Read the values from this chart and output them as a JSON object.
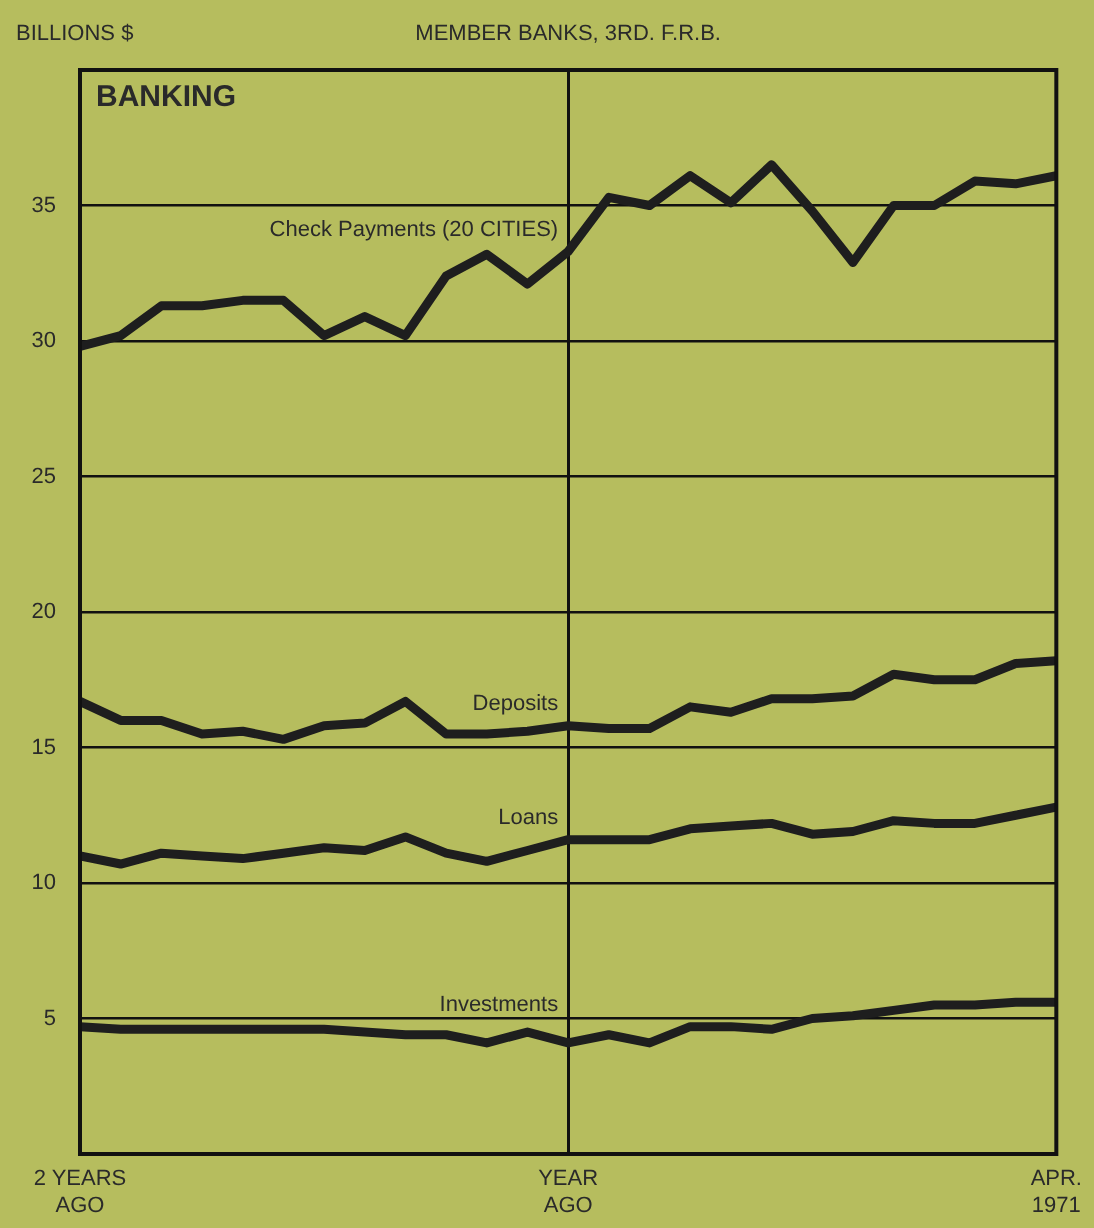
{
  "chart_data": {
    "type": "line",
    "title": "BANKING",
    "subtitle": "MEMBER BANKS, 3RD. F.R.B.",
    "ylabel": "BILLIONS $",
    "categories": [
      "2 YEARS AGO",
      null,
      null,
      null,
      null,
      null,
      null,
      null,
      null,
      null,
      null,
      null,
      "YEAR AGO",
      null,
      null,
      null,
      null,
      null,
      null,
      null,
      null,
      null,
      null,
      null,
      "APR. 1971"
    ],
    "ylim": [
      0,
      40
    ],
    "yticks": [
      {
        "value": 0,
        "label": null
      },
      5,
      10,
      15,
      20,
      25,
      30,
      35,
      {
        "value": 40,
        "label": null
      }
    ],
    "grid": true,
    "legend": false,
    "marker": "none",
    "line_style": "solid",
    "series": [
      {
        "name": "Check Payments (20 CITIES)",
        "color": "#1e1e1e",
        "values": [
          29.8,
          30.2,
          31.3,
          31.3,
          31.5,
          31.5,
          30.2,
          30.9,
          30.2,
          32.4,
          33.2,
          32.1,
          33.3,
          35.3,
          35.0,
          36.1,
          35.1,
          36.5,
          34.8,
          32.9,
          35.0,
          35.0,
          35.9,
          35.8,
          36.1
        ]
      },
      {
        "name": "Deposits",
        "color": "#1e1e1e",
        "values": [
          16.7,
          16.0,
          16.0,
          15.5,
          15.6,
          15.3,
          15.8,
          15.9,
          16.7,
          15.5,
          15.5,
          15.6,
          15.8,
          15.7,
          15.7,
          16.5,
          16.3,
          16.8,
          16.8,
          16.9,
          17.7,
          17.5,
          17.5,
          18.1,
          18.2
        ]
      },
      {
        "name": "Loans",
        "color": "#1e1e1e",
        "values": [
          11.0,
          10.7,
          11.1,
          11.0,
          10.9,
          11.1,
          11.3,
          11.2,
          11.7,
          11.1,
          10.8,
          11.2,
          11.6,
          11.6,
          11.6,
          12.0,
          12.1,
          12.2,
          11.8,
          11.9,
          12.3,
          12.2,
          12.2,
          12.5,
          12.8
        ]
      },
      {
        "name": "Investments",
        "color": "#1e1e1e",
        "values": [
          4.7,
          4.6,
          4.6,
          4.6,
          4.6,
          4.6,
          4.6,
          4.5,
          4.4,
          4.4,
          4.1,
          4.5,
          4.1,
          4.4,
          4.1,
          4.7,
          4.7,
          4.6,
          5.0,
          5.1,
          5.3,
          5.5,
          5.5,
          5.6,
          5.6
        ]
      }
    ]
  }
}
